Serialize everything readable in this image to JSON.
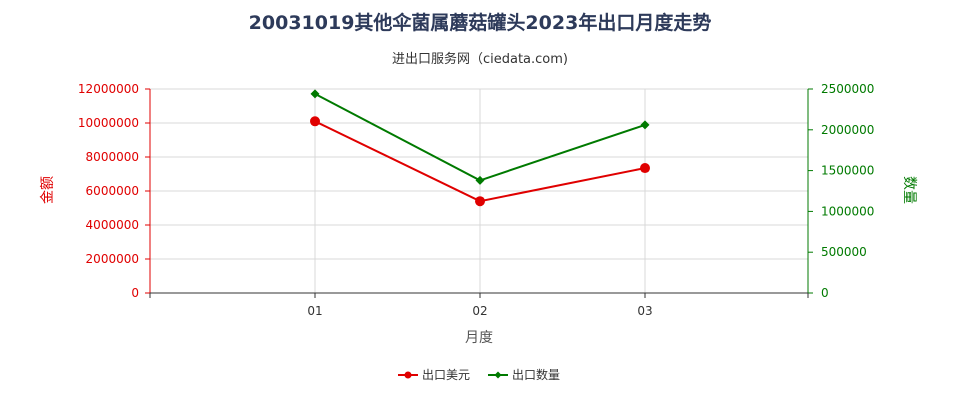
{
  "chart_data": {
    "type": "line",
    "title": "20031019其他伞菌属蘑菇罐头2023年出口月度走势",
    "subtitle": "进出口服务网（ciedata.com)",
    "xlabel": "月度",
    "ylabel_left": "金额",
    "ylabel_right": "数量",
    "categories": [
      "01",
      "02",
      "03"
    ],
    "y_left": {
      "range": [
        0,
        12000000
      ],
      "ticks": [
        "0",
        "2000000",
        "4000000",
        "6000000",
        "8000000",
        "10000000",
        "12000000"
      ]
    },
    "y_right": {
      "range": [
        0,
        2500000
      ],
      "ticks": [
        "0",
        "500000",
        "1000000",
        "1500000",
        "2000000",
        "2500000"
      ]
    },
    "grid": true,
    "legend_position": "bottom",
    "series": [
      {
        "name": "出口美元",
        "axis": "left",
        "color": "#e00000",
        "marker": "circle",
        "values": [
          10100000,
          5400000,
          7350000
        ]
      },
      {
        "name": "出口数量",
        "axis": "right",
        "color": "#007a00",
        "marker": "diamond",
        "values": [
          2440000,
          1380000,
          2060000
        ]
      }
    ]
  }
}
